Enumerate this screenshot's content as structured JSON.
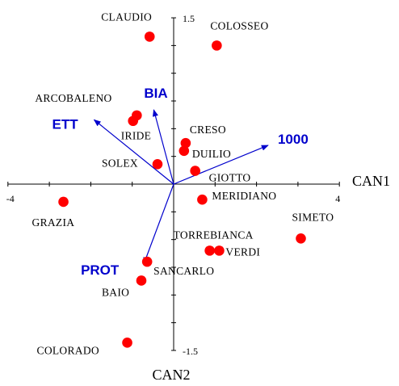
{
  "chart_data": {
    "type": "scatter",
    "xlabel": "CAN1",
    "ylabel": "CAN2",
    "xlim": [
      -4,
      4
    ],
    "ylim": [
      -1.5,
      1.5
    ],
    "grid": false,
    "x_tick_labels": {
      "min": "-4",
      "max": "4"
    },
    "y_tick_labels": {
      "max": "1.5",
      "min": "-1.5"
    },
    "points": [
      {
        "name": "CLAUDIO",
        "x": -0.58,
        "y": 1.33
      },
      {
        "name": "COLOSSEO",
        "x": 1.04,
        "y": 1.25
      },
      {
        "name": "ARCOBALENO",
        "x": -0.89,
        "y": 0.62
      },
      {
        "name": "IRIDE",
        "x": -0.98,
        "y": 0.57
      },
      {
        "name": "CRESO",
        "x": 0.29,
        "y": 0.37
      },
      {
        "name": "DUILIO",
        "x": 0.25,
        "y": 0.3
      },
      {
        "name": "SOLEX",
        "x": -0.39,
        "y": 0.18
      },
      {
        "name": "GIOTTO",
        "x": 0.52,
        "y": 0.12
      },
      {
        "name": "MERIDIANO",
        "x": 0.69,
        "y": -0.14
      },
      {
        "name": "GRAZIA",
        "x": -2.66,
        "y": -0.16
      },
      {
        "name": "SIMETO",
        "x": 3.07,
        "y": -0.49
      },
      {
        "name": "TORREBIANCA",
        "x": 0.87,
        "y": -0.6
      },
      {
        "name": "VERDI",
        "x": 1.1,
        "y": -0.6
      },
      {
        "name": "SANCARLO",
        "x": -0.64,
        "y": -0.7
      },
      {
        "name": "BAIO",
        "x": -0.78,
        "y": -0.87
      },
      {
        "name": "COLORADO",
        "x": -1.12,
        "y": -1.43
      }
    ],
    "vectors": [
      {
        "name": "BIA",
        "x": -0.48,
        "y": 0.67
      },
      {
        "name": "ETT",
        "x": -1.92,
        "y": 0.58
      },
      {
        "name": "1000",
        "x": 2.28,
        "y": 0.35
      },
      {
        "name": "PROT",
        "x": -0.72,
        "y": -0.72
      }
    ]
  }
}
